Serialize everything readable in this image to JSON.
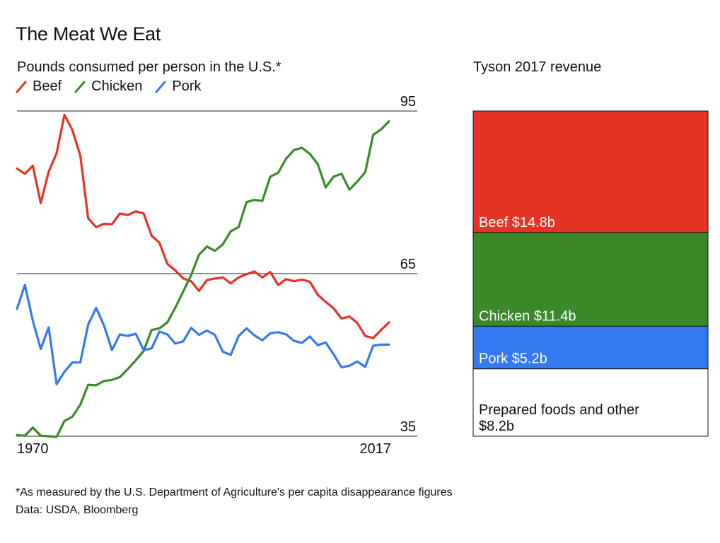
{
  "title": "The Meat We Eat",
  "line_chart": {
    "subtitle": "Pounds consumed per person in the U.S.*",
    "legend": [
      {
        "name": "Beef",
        "color": "#e53425",
        "icon": "line-stroke-icon"
      },
      {
        "name": "Chicken",
        "color": "#3a8a2a",
        "icon": "line-stroke-icon"
      },
      {
        "name": "Pork",
        "color": "#3579f0",
        "icon": "line-stroke-icon"
      }
    ],
    "y_ticks": [
      "95",
      "65",
      "35"
    ],
    "x_start_label": "1970",
    "x_end_label": "2017"
  },
  "bar_chart": {
    "title": "Tyson 2017 revenue",
    "segments": [
      {
        "label": "Beef $14.8b",
        "label_lines": [
          "Beef $14.8b"
        ],
        "value": 14.8,
        "color": "#e53425",
        "text_color": "#ffffff"
      },
      {
        "label": "Chicken $11.4b",
        "label_lines": [
          "Chicken $11.4b"
        ],
        "value": 11.4,
        "color": "#3a8a2a",
        "text_color": "#ffffff"
      },
      {
        "label": "Pork $5.2b",
        "label_lines": [
          "Pork $5.2b"
        ],
        "value": 5.2,
        "color": "#3579f0",
        "text_color": "#ffffff"
      },
      {
        "label": "Prepared foods and other $8.2b",
        "label_lines": [
          "Prepared foods and other",
          "$8.2b"
        ],
        "value": 8.2,
        "color": "#ffffff",
        "text_color": "#111111"
      }
    ]
  },
  "footnote": "*As measured by the U.S. Department of Agriculture's per capita disappearance figures",
  "source": "Data: USDA, Bloomberg",
  "chart_data": [
    {
      "type": "line",
      "title": "The Meat We Eat",
      "subtitle": "Pounds consumed per person in the U.S.*",
      "xlabel": "",
      "ylabel": "",
      "x_range": [
        1970,
        2017
      ],
      "ylim": [
        35,
        95
      ],
      "y_ticks": [
        35,
        65,
        95
      ],
      "grid": "horizontal lines at 35, 65, 95",
      "legend": "top-left",
      "x": [
        1970,
        1971,
        1972,
        1973,
        1974,
        1975,
        1976,
        1977,
        1978,
        1979,
        1980,
        1981,
        1982,
        1983,
        1984,
        1985,
        1986,
        1987,
        1988,
        1989,
        1990,
        1991,
        1992,
        1993,
        1994,
        1995,
        1996,
        1997,
        1998,
        1999,
        2000,
        2001,
        2002,
        2003,
        2004,
        2005,
        2006,
        2007,
        2008,
        2009,
        2010,
        2011,
        2012,
        2013,
        2014,
        2015,
        2016,
        2017
      ],
      "series": [
        {
          "name": "Beef",
          "color": "#e53425",
          "values": [
            84.4,
            83.4,
            84.9,
            78.0,
            83.8,
            87.2,
            94.3,
            91.5,
            86.8,
            75.2,
            73.6,
            74.2,
            74.1,
            76.1,
            75.8,
            76.5,
            76.1,
            72.0,
            70.7,
            66.8,
            65.6,
            64.1,
            63.6,
            61.8,
            63.8,
            64.1,
            64.3,
            63.2,
            64.3,
            64.9,
            65.4,
            64.3,
            65.3,
            62.9,
            64.0,
            63.6,
            63.9,
            63.5,
            61.1,
            59.8,
            58.6,
            56.7,
            57.1,
            55.9,
            53.5,
            53.1,
            54.6,
            56.0
          ]
        },
        {
          "name": "Chicken",
          "color": "#3a8a2a",
          "values": [
            35.2,
            35.1,
            36.6,
            35.1,
            35.0,
            34.9,
            37.8,
            38.6,
            40.8,
            44.5,
            44.4,
            45.2,
            45.4,
            45.9,
            47.4,
            49.0,
            50.7,
            54.6,
            54.9,
            56.0,
            58.7,
            61.7,
            64.7,
            68.5,
            70.0,
            69.2,
            70.4,
            72.8,
            73.6,
            78.2,
            78.6,
            78.4,
            82.9,
            83.6,
            86.2,
            87.8,
            88.2,
            87.1,
            85.2,
            80.9,
            82.9,
            83.4,
            80.5,
            82.0,
            83.7,
            90.6,
            91.6,
            93.1
          ]
        },
        {
          "name": "Pork",
          "color": "#3579f0",
          "values": [
            58.5,
            62.9,
            56.3,
            51.1,
            55.1,
            44.6,
            46.9,
            48.6,
            48.6,
            55.6,
            58.7,
            55.4,
            50.9,
            53.8,
            53.5,
            53.9,
            50.9,
            51.2,
            54.3,
            53.8,
            52.1,
            52.5,
            55.0,
            53.7,
            54.5,
            53.7,
            50.6,
            50.0,
            53.5,
            54.9,
            53.6,
            52.7,
            54.0,
            54.2,
            53.8,
            52.6,
            52.2,
            53.4,
            51.8,
            52.3,
            50.1,
            47.7,
            48.0,
            48.8,
            47.8,
            51.7,
            51.9,
            51.9
          ]
        }
      ]
    },
    {
      "type": "bar",
      "title": "Tyson 2017 revenue",
      "categories": [
        "Beef",
        "Chicken",
        "Pork",
        "Prepared foods and other"
      ],
      "values": [
        14.8,
        11.4,
        5.2,
        8.2
      ],
      "unit": "$b",
      "orientation": "stacked-vertical"
    }
  ]
}
